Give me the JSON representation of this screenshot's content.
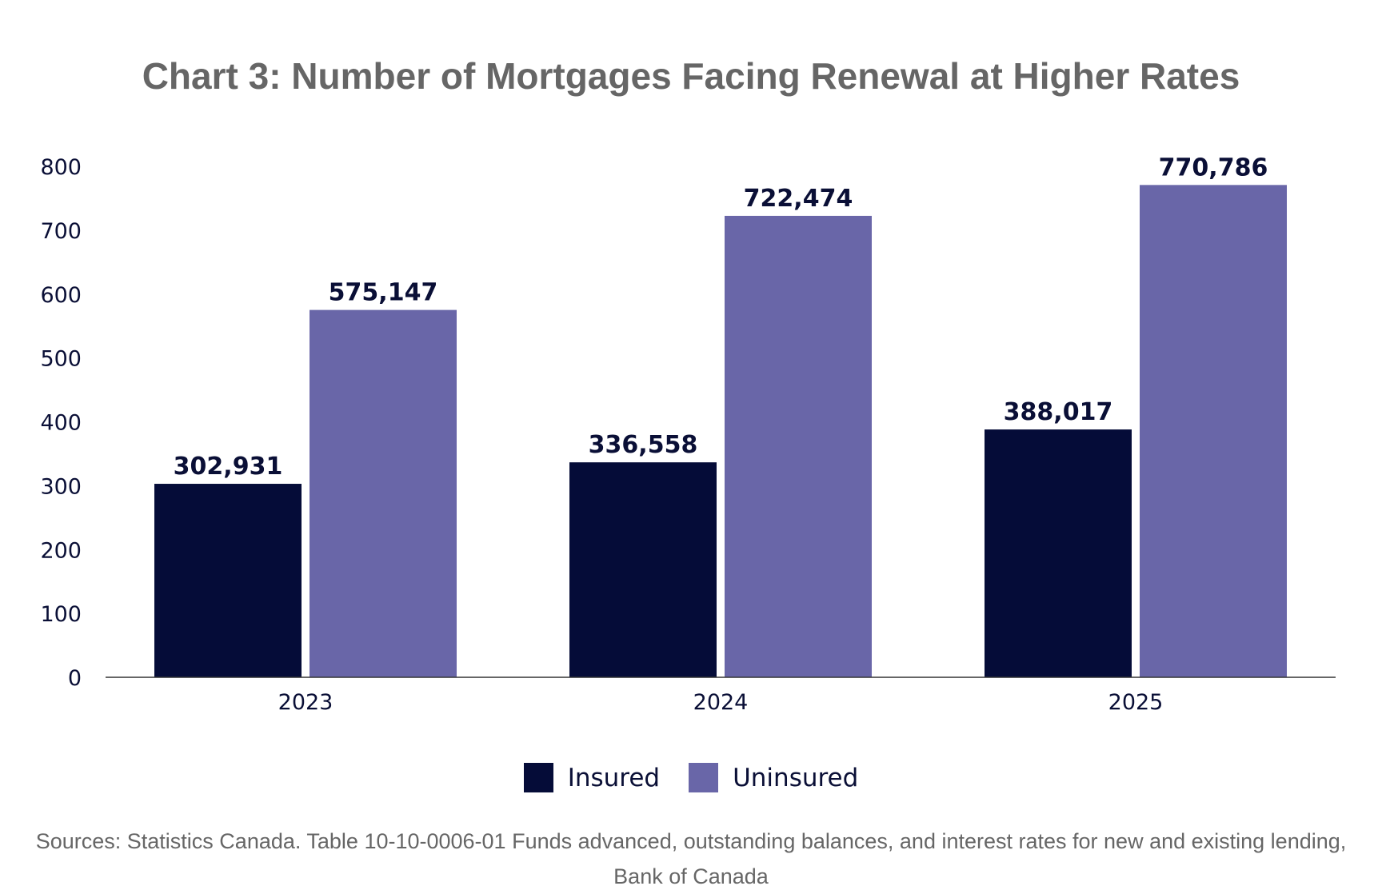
{
  "chart_data": {
    "type": "bar",
    "title": "Chart 3: Number of Mortgages Facing Renewal at Higher Rates",
    "categories": [
      "2023",
      "2024",
      "2025"
    ],
    "series": [
      {
        "name": "Insured",
        "values": [
          302931,
          336558,
          388017
        ],
        "labels": [
          "302,931",
          "336,558",
          "388,017"
        ],
        "color": "#050c38"
      },
      {
        "name": "Uninsured",
        "values": [
          575147,
          722474,
          770786
        ],
        "labels": [
          "575,147",
          "722,474",
          "770,786"
        ],
        "color": "#6966a8"
      }
    ],
    "y_ticks": [
      0,
      100,
      200,
      300,
      400,
      500,
      600,
      700,
      800
    ],
    "ylim": [
      0,
      800000
    ],
    "y_tick_unit": 1000,
    "xlabel": "",
    "ylabel": "",
    "grid": false,
    "legend_position": "bottom-center"
  },
  "source_note": "Sources: Statistics Canada. Table 10-10-0006-01 Funds advanced, outstanding balances, and interest rates for new and existing lending, Bank of Canada"
}
